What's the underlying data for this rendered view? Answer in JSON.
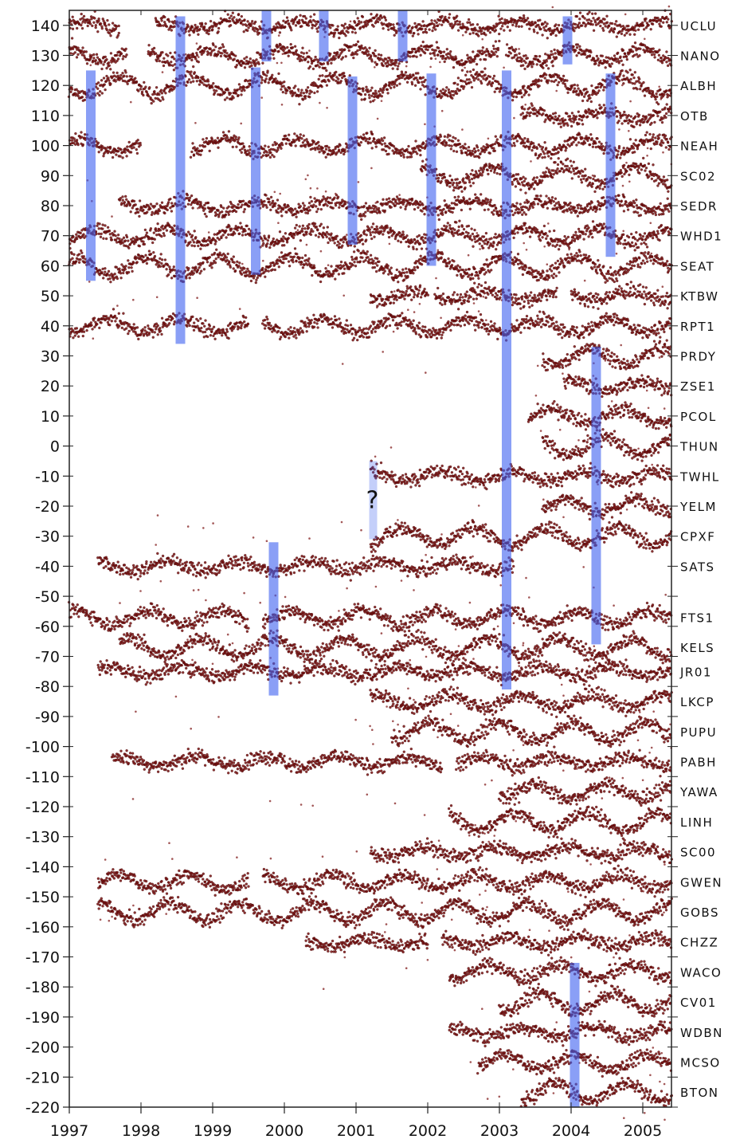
{
  "chart_data": {
    "type": "scatter",
    "title": "",
    "xlabel": "",
    "ylabel": "",
    "xlim": [
      1997,
      2005.4
    ],
    "ylim": [
      -220,
      145
    ],
    "x_ticks": [
      "1997",
      "1998",
      "1999",
      "2000",
      "2001",
      "2002",
      "2003",
      "2004",
      "2005"
    ],
    "y_ticks": [
      "140",
      "130",
      "120",
      "110",
      "100",
      "90",
      "80",
      "70",
      "60",
      "50",
      "40",
      "30",
      "20",
      "10",
      "0",
      "-10",
      "-20",
      "-30",
      "-40",
      "-50",
      "-60",
      "-70",
      "-80",
      "-90",
      "-100",
      "-110",
      "-120",
      "-130",
      "-140",
      "-150",
      "-160",
      "-170",
      "-180",
      "-190",
      "-200",
      "-210",
      "-220"
    ],
    "series": [
      {
        "name": "UCLU",
        "offset": 140,
        "segments": [
          [
            1997.0,
            1997.7
          ],
          [
            1998.2,
            2005.4
          ]
        ]
      },
      {
        "name": "NANO",
        "offset": 130,
        "segments": [
          [
            1997.0,
            1997.8
          ],
          [
            1998.1,
            2003.0
          ],
          [
            2003.1,
            2005.4
          ]
        ]
      },
      {
        "name": "ALBH",
        "offset": 120,
        "segments": [
          [
            1997.0,
            2005.4
          ]
        ]
      },
      {
        "name": "OTB",
        "offset": 110,
        "segments": [
          [
            2003.3,
            2005.4
          ]
        ]
      },
      {
        "name": "NEAH",
        "offset": 100,
        "segments": [
          [
            1997.0,
            1998.0
          ],
          [
            1998.7,
            2005.4
          ]
        ]
      },
      {
        "name": "SC02",
        "offset": 90,
        "segments": [
          [
            2001.9,
            2005.4
          ]
        ]
      },
      {
        "name": "SEDR",
        "offset": 80,
        "segments": [
          [
            1997.7,
            2005.4
          ]
        ]
      },
      {
        "name": "WHD1",
        "offset": 70,
        "segments": [
          [
            1997.0,
            2005.4
          ]
        ]
      },
      {
        "name": "SEAT",
        "offset": 60,
        "segments": [
          [
            1997.0,
            2005.4
          ]
        ]
      },
      {
        "name": "KTBW",
        "offset": 50,
        "segments": [
          [
            2001.2,
            2002.0
          ],
          [
            2002.1,
            2003.8
          ],
          [
            2004.0,
            2005.4
          ]
        ]
      },
      {
        "name": "RPT1",
        "offset": 40,
        "segments": [
          [
            1997.0,
            1999.5
          ],
          [
            1999.7,
            2005.4
          ]
        ]
      },
      {
        "name": "PRDY",
        "offset": 30,
        "segments": [
          [
            2003.6,
            2005.4
          ]
        ]
      },
      {
        "name": "ZSE1",
        "offset": 20,
        "segments": [
          [
            2003.9,
            2005.4
          ]
        ]
      },
      {
        "name": "PCOL",
        "offset": 10,
        "segments": [
          [
            2003.4,
            2005.4
          ]
        ]
      },
      {
        "name": "THUN",
        "offset": 0,
        "segments": [
          [
            2003.6,
            2005.4
          ]
        ]
      },
      {
        "name": "TWHL",
        "offset": -10,
        "segments": [
          [
            2001.2,
            2005.4
          ]
        ]
      },
      {
        "name": "YELM",
        "offset": -20,
        "segments": [
          [
            2003.6,
            2005.4
          ]
        ]
      },
      {
        "name": "CPXF",
        "offset": -30,
        "segments": [
          [
            2001.2,
            2005.4
          ]
        ]
      },
      {
        "name": "SATS",
        "offset": -40,
        "segments": [
          [
            1997.4,
            2003.2
          ]
        ]
      },
      {
        "name": "FTS1",
        "offset": -57,
        "segments": [
          [
            1997.0,
            1999.5
          ],
          [
            1999.7,
            2005.4
          ]
        ]
      },
      {
        "name": "KELS",
        "offset": -67,
        "segments": [
          [
            1997.7,
            2005.4
          ]
        ]
      },
      {
        "name": "JR01",
        "offset": -75,
        "segments": [
          [
            1997.4,
            2005.4
          ]
        ]
      },
      {
        "name": "LKCP",
        "offset": -85,
        "segments": [
          [
            2001.2,
            2005.4
          ]
        ]
      },
      {
        "name": "PUPU",
        "offset": -95,
        "segments": [
          [
            2001.5,
            2005.4
          ]
        ]
      },
      {
        "name": "PABH",
        "offset": -105,
        "segments": [
          [
            1997.6,
            2002.2
          ],
          [
            2002.4,
            2005.4
          ]
        ]
      },
      {
        "name": "YAWA",
        "offset": -115,
        "segments": [
          [
            2003.0,
            2005.4
          ]
        ]
      },
      {
        "name": "LINH",
        "offset": -125,
        "segments": [
          [
            2002.3,
            2005.4
          ]
        ]
      },
      {
        "name": "SC00",
        "offset": -135,
        "segments": [
          [
            2001.2,
            2005.4
          ]
        ]
      },
      {
        "name": "GWEN",
        "offset": -145,
        "segments": [
          [
            1997.4,
            1999.5
          ],
          [
            1999.7,
            2005.4
          ]
        ]
      },
      {
        "name": "GOBS",
        "offset": -155,
        "segments": [
          [
            1997.4,
            2005.4
          ]
        ]
      },
      {
        "name": "CHZZ",
        "offset": -165,
        "segments": [
          [
            2000.3,
            2002.0
          ],
          [
            2002.2,
            2005.4
          ]
        ]
      },
      {
        "name": "WACO",
        "offset": -175,
        "segments": [
          [
            2002.3,
            2005.4
          ]
        ]
      },
      {
        "name": "CV01",
        "offset": -185,
        "segments": [
          [
            2003.0,
            2005.4
          ]
        ]
      },
      {
        "name": "WDBN",
        "offset": -195,
        "segments": [
          [
            2002.3,
            2005.4
          ]
        ]
      },
      {
        "name": "MCSO",
        "offset": -205,
        "segments": [
          [
            2002.7,
            2005.4
          ]
        ]
      },
      {
        "name": "BTON",
        "offset": -215,
        "segments": [
          [
            2003.3,
            2005.4
          ]
        ]
      }
    ],
    "event_bands": [
      {
        "x": 2001.25,
        "y_top": -5,
        "y_bottom": -31,
        "label": "?",
        "style": "pale"
      },
      {
        "x": 1997.3,
        "y_top": 125,
        "y_bottom": 55,
        "style": "solid"
      },
      {
        "x": 1998.55,
        "y_top": 143,
        "y_bottom": 34,
        "style": "solid"
      },
      {
        "x": 1999.6,
        "y_top": 126,
        "y_bottom": 57,
        "style": "solid"
      },
      {
        "x": 1999.85,
        "y_top": -32,
        "y_bottom": -83,
        "style": "solid"
      },
      {
        "x": 1999.75,
        "y_top": 145,
        "y_bottom": 128,
        "style": "solid"
      },
      {
        "x": 2000.55,
        "y_top": 145,
        "y_bottom": 128,
        "style": "solid"
      },
      {
        "x": 2000.95,
        "y_top": 123,
        "y_bottom": 67,
        "style": "solid"
      },
      {
        "x": 2001.65,
        "y_top": 145,
        "y_bottom": 128,
        "style": "solid"
      },
      {
        "x": 2002.05,
        "y_top": 124,
        "y_bottom": 60,
        "style": "solid"
      },
      {
        "x": 2003.1,
        "y_top": 125,
        "y_bottom": -81,
        "style": "solid"
      },
      {
        "x": 2003.95,
        "y_top": 143,
        "y_bottom": 127,
        "style": "solid"
      },
      {
        "x": 2004.05,
        "y_top": -172,
        "y_bottom": -220,
        "style": "solid"
      },
      {
        "x": 2004.35,
        "y_top": 33,
        "y_bottom": -66,
        "style": "solid"
      },
      {
        "x": 2004.55,
        "y_top": 124,
        "y_bottom": 63,
        "style": "solid"
      }
    ],
    "grid": false,
    "colors": {
      "points": "#7a1010",
      "point_stroke": "#3a0505",
      "bands": "#3c5ff0",
      "axis": "#222222"
    }
  }
}
